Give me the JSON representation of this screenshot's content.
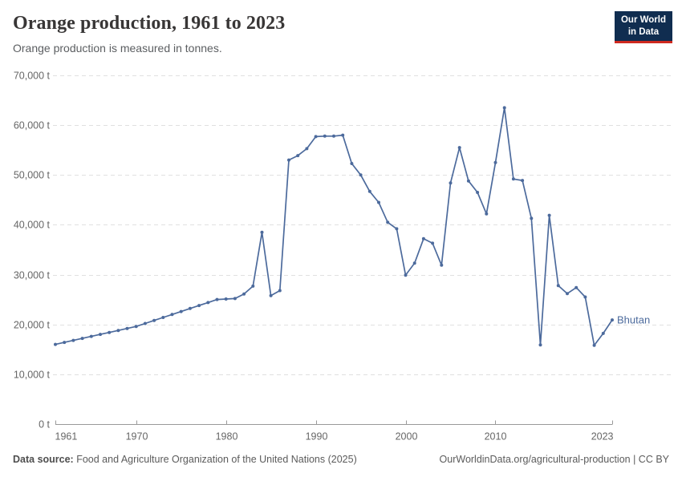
{
  "header": {
    "title": "Orange production, 1961 to 2023",
    "subtitle": "Orange production is measured in tonnes.",
    "logo_line1": "Our World",
    "logo_line2": "in Data",
    "logo_colors": {
      "background": "#102d50",
      "accent_bar": "#cf2a20",
      "text": "#ffffff"
    }
  },
  "chart_data": {
    "type": "line",
    "title": "Orange production, 1961 to 2023",
    "unit": "tonnes",
    "xlim": [
      1961,
      2023
    ],
    "ylim": [
      0,
      70000
    ],
    "grid": "horizontal-dashed",
    "legend_position": "end-of-line-label",
    "x_ticks": [
      1961,
      1970,
      1980,
      1990,
      2000,
      2010,
      2023
    ],
    "y_ticks": [
      {
        "value": 0,
        "label": "0 t"
      },
      {
        "value": 10000,
        "label": "10,000 t"
      },
      {
        "value": 20000,
        "label": "20,000 t"
      },
      {
        "value": 30000,
        "label": "30,000 t"
      },
      {
        "value": 40000,
        "label": "40,000 t"
      },
      {
        "value": 50000,
        "label": "50,000 t"
      },
      {
        "value": 60000,
        "label": "60,000 t"
      },
      {
        "value": 70000,
        "label": "70,000 t"
      }
    ],
    "series": [
      {
        "name": "Bhutan",
        "color": "#4c6a9c",
        "years": [
          1961,
          1962,
          1963,
          1964,
          1965,
          1966,
          1967,
          1968,
          1969,
          1970,
          1971,
          1972,
          1973,
          1974,
          1975,
          1976,
          1977,
          1978,
          1979,
          1980,
          1981,
          1982,
          1983,
          1984,
          1985,
          1986,
          1987,
          1988,
          1989,
          1990,
          1991,
          1992,
          1993,
          1994,
          1995,
          1996,
          1997,
          1998,
          1999,
          2000,
          2001,
          2002,
          2003,
          2004,
          2005,
          2006,
          2007,
          2008,
          2009,
          2010,
          2011,
          2012,
          2013,
          2014,
          2015,
          2016,
          2017,
          2018,
          2019,
          2020,
          2021,
          2022,
          2023
        ],
        "values": [
          16000,
          16400,
          16800,
          17200,
          17600,
          18000,
          18400,
          18800,
          19200,
          19600,
          20200,
          20800,
          21400,
          22000,
          22600,
          23200,
          23800,
          24400,
          25000,
          25100,
          25200,
          26100,
          27700,
          38500,
          25800,
          26800,
          53000,
          53900,
          55300,
          57700,
          57800,
          57800,
          58000,
          52300,
          50000,
          46700,
          44500,
          40500,
          39200,
          29900,
          32300,
          37200,
          36300,
          31900,
          48400,
          55500,
          48800,
          46500,
          42200,
          52500,
          63500,
          49200,
          48900,
          41300,
          15900,
          41900,
          27800,
          26200,
          27400,
          25500,
          15800,
          18200,
          20900
        ]
      }
    ],
    "end_label": "Bhutan"
  },
  "footer": {
    "source_label": "Data source:",
    "source_text": "Food and Agriculture Organization of the United Nations (2025)",
    "right_text": "OurWorldinData.org/agricultural-production | CC BY"
  },
  "colors": {
    "line": "#4c6a9c",
    "axis_text": "#666666",
    "grid": "#e0e0e0",
    "axis_line": "#999999"
  }
}
